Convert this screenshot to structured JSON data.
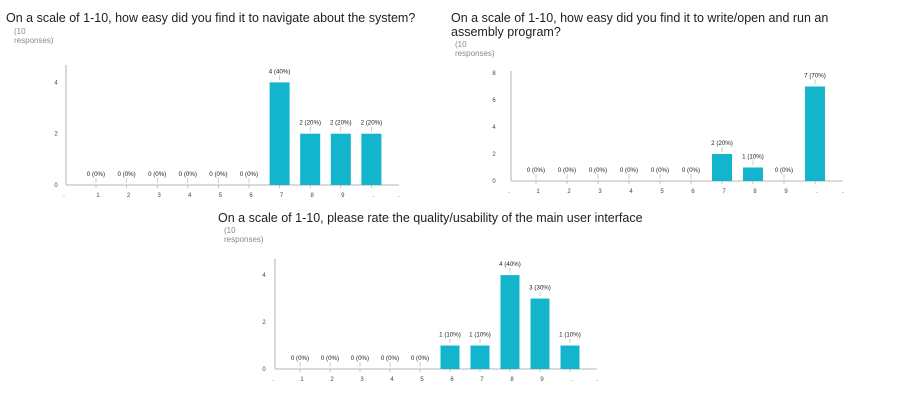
{
  "colors": {
    "bar": "#12b5cb",
    "axis": "#9e9e9e",
    "text": "#212121",
    "subtext": "#8a8a8a"
  },
  "chart_data": [
    {
      "type": "bar",
      "title": "On a scale of 1-10, how easy did you find it to navigate about the system?",
      "subtitle": "(10 responses)",
      "categories": [
        "1",
        "2",
        "3",
        "4",
        "5",
        "6",
        "7",
        "8",
        "9",
        "10"
      ],
      "tick_labels": [
        "1",
        "2",
        "3",
        "4",
        "5",
        "6",
        "7",
        "8",
        "9",
        "."
      ],
      "values": [
        0,
        0,
        0,
        0,
        0,
        0,
        4,
        2,
        2,
        2
      ],
      "data_labels": [
        "0 (0%)",
        "0 (0%)",
        "0 (0%)",
        "0 (0%)",
        "0 (0%)",
        "0 (0%)",
        "4 (40%)",
        "2 (20%)",
        "2 (20%)",
        "2 (20%)"
      ],
      "ylim": [
        0,
        4.6
      ],
      "yticks": [
        0,
        2,
        4
      ],
      "grid": false
    },
    {
      "type": "bar",
      "title": "On a scale of 1-10, how easy did you find it to write/open and run an assembly program?",
      "subtitle": "(10 responses)",
      "categories": [
        "1",
        "2",
        "3",
        "4",
        "5",
        "6",
        "7",
        "8",
        "9",
        "10"
      ],
      "tick_labels": [
        "1",
        "2",
        "3",
        "4",
        "5",
        "6",
        "7",
        "8",
        "9",
        "."
      ],
      "values": [
        0,
        0,
        0,
        0,
        0,
        0,
        2,
        1,
        0,
        7
      ],
      "data_labels": [
        "0 (0%)",
        "0 (0%)",
        "0 (0%)",
        "0 (0%)",
        "0 (0%)",
        "0 (0%)",
        "2 (20%)",
        "1 (10%)",
        "0 (0%)",
        "7 (70%)"
      ],
      "ylim": [
        0,
        8
      ],
      "yticks": [
        0,
        2,
        4,
        6,
        8
      ],
      "grid": false
    },
    {
      "type": "bar",
      "title": "On a scale of 1-10, please rate the quality/usability of the main user interface",
      "subtitle": "(10 responses)",
      "categories": [
        "1",
        "2",
        "3",
        "4",
        "5",
        "6",
        "7",
        "8",
        "9",
        "10"
      ],
      "tick_labels": [
        "1",
        "2",
        "3",
        "4",
        "5",
        "6",
        "7",
        "8",
        "9",
        "."
      ],
      "values": [
        0,
        0,
        0,
        0,
        0,
        1,
        1,
        4,
        3,
        1
      ],
      "data_labels": [
        "0 (0%)",
        "0 (0%)",
        "0 (0%)",
        "0 (0%)",
        "0 (0%)",
        "1 (10%)",
        "1 (10%)",
        "4 (40%)",
        "3 (30%)",
        "1 (10%)"
      ],
      "ylim": [
        0,
        4.6
      ],
      "yticks": [
        0,
        2,
        4
      ],
      "grid": false
    }
  ]
}
